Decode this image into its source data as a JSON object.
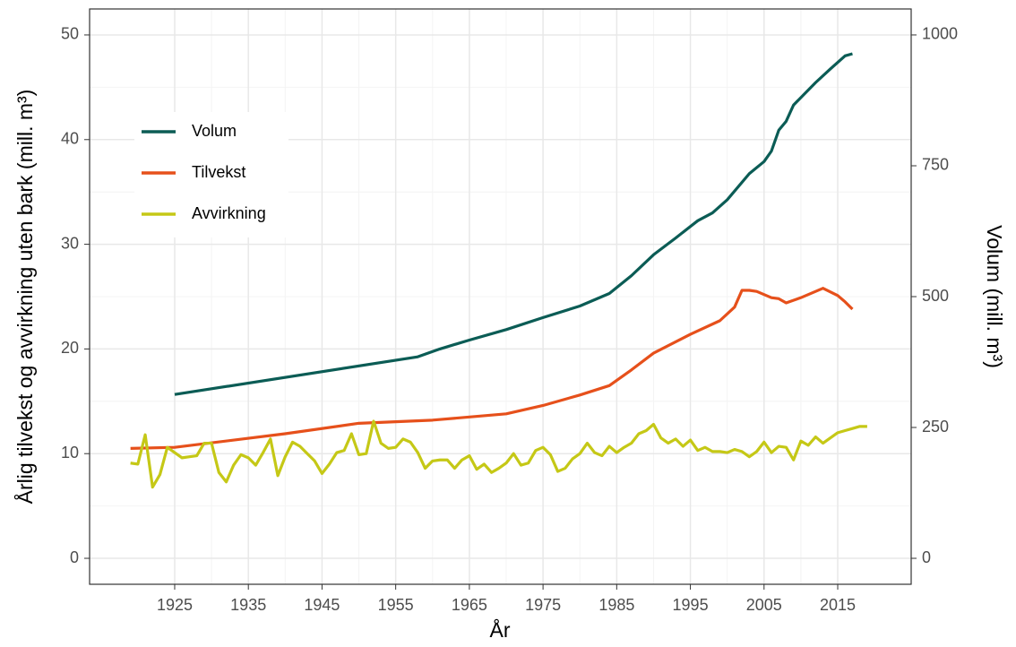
{
  "chart_data": {
    "type": "line",
    "x_label": "År",
    "y_label": "Årlig tilvekst og avvirkning uten bark (mill. m³)",
    "y2_label": "Volum (mill. m³)",
    "xlim": [
      1913.45,
      2024.97
    ],
    "xticks": [
      1925,
      1935,
      1945,
      1955,
      1965,
      1975,
      1985,
      1995,
      2005,
      2015
    ],
    "ylim": [
      -2.48,
      52.48
    ],
    "yticks": [
      0,
      10,
      20,
      30,
      40,
      50
    ],
    "y2lim": [
      -49.6,
      1049.6
    ],
    "y2ticks": [
      0,
      250,
      500,
      750,
      1000
    ],
    "grid": true,
    "legend": "top-left",
    "series": [
      {
        "name": "Volum",
        "color": "#0b5c55",
        "axis": "y2",
        "x": [
          1925,
          1958,
          1961,
          1965,
          1970,
          1975,
          1980,
          1984,
          1987,
          1990,
          1993,
          1996,
          1998,
          2000,
          2003,
          2005,
          2006,
          2007,
          2008,
          2009,
          2012,
          2014,
          2016,
          2017
        ],
        "values": [
          313,
          385,
          400,
          417,
          437,
          460,
          482,
          506,
          540,
          580,
          612,
          645,
          660,
          685,
          735,
          758,
          778,
          818,
          835,
          866,
          909,
          935,
          960,
          964
        ]
      },
      {
        "name": "Tilvekst",
        "color": "#e6501b",
        "x": [
          1919,
          1925,
          1940,
          1950,
          1960,
          1970,
          1975,
          1980,
          1984,
          1987,
          1990,
          1995,
          1999,
          2001,
          2002,
          2003,
          2004,
          2006,
          2007,
          2008,
          2010,
          2013,
          2015,
          2016,
          2017
        ],
        "values": [
          10.5,
          10.6,
          11.9,
          12.9,
          13.2,
          13.8,
          14.6,
          15.6,
          16.5,
          18.0,
          19.6,
          21.4,
          22.7,
          24.0,
          25.6,
          25.6,
          25.5,
          24.9,
          24.8,
          24.4,
          24.9,
          25.8,
          25.1,
          24.5,
          23.8
        ]
      },
      {
        "name": "Avvirkning",
        "color": "#c5c816",
        "x": [
          1919,
          1920,
          1921,
          1922,
          1923,
          1924,
          1925,
          1926,
          1927,
          1928,
          1929,
          1930,
          1931,
          1932,
          1933,
          1934,
          1935,
          1936,
          1937,
          1938,
          1939,
          1940,
          1941,
          1942,
          1943,
          1944,
          1945,
          1946,
          1947,
          1948,
          1949,
          1950,
          1951,
          1952,
          1953,
          1954,
          1955,
          1956,
          1957,
          1958,
          1959,
          1960,
          1961,
          1962,
          1963,
          1964,
          1965,
          1966,
          1967,
          1968,
          1969,
          1970,
          1971,
          1972,
          1973,
          1974,
          1975,
          1976,
          1977,
          1978,
          1979,
          1980,
          1981,
          1982,
          1983,
          1984,
          1985,
          1986,
          1987,
          1988,
          1989,
          1990,
          1991,
          1992,
          1993,
          1994,
          1995,
          1996,
          1997,
          1998,
          1999,
          2000,
          2001,
          2002,
          2003,
          2004,
          2005,
          2006,
          2007,
          2008,
          2009,
          2010,
          2011,
          2012,
          2013,
          2014,
          2015,
          2016,
          2017,
          2018,
          2019
        ],
        "values": [
          9.1,
          9.0,
          11.8,
          6.8,
          8.0,
          10.6,
          10.1,
          9.6,
          9.7,
          9.8,
          11.0,
          11.0,
          8.2,
          7.3,
          8.9,
          9.9,
          9.6,
          8.9,
          10.1,
          11.4,
          7.9,
          9.7,
          11.1,
          10.7,
          10.0,
          9.3,
          8.1,
          9.0,
          10.1,
          10.3,
          11.9,
          9.9,
          10.0,
          13.1,
          11.0,
          10.5,
          10.6,
          11.4,
          11.1,
          10.1,
          8.6,
          9.3,
          9.4,
          9.4,
          8.6,
          9.4,
          9.8,
          8.5,
          9.0,
          8.2,
          8.6,
          9.1,
          10.0,
          8.9,
          9.1,
          10.3,
          10.6,
          9.9,
          8.3,
          8.6,
          9.5,
          10.0,
          11.0,
          10.1,
          9.8,
          10.7,
          10.1,
          10.6,
          11.0,
          11.9,
          12.2,
          12.8,
          11.5,
          11.0,
          11.4,
          10.7,
          11.3,
          10.3,
          10.6,
          10.2,
          10.2,
          10.1,
          10.4,
          10.2,
          9.7,
          10.2,
          11.1,
          10.1,
          10.7,
          10.6,
          9.4,
          11.2,
          10.8,
          11.6,
          11.0,
          11.5,
          12.0,
          12.2,
          12.4,
          12.6,
          12.6
        ]
      }
    ]
  }
}
